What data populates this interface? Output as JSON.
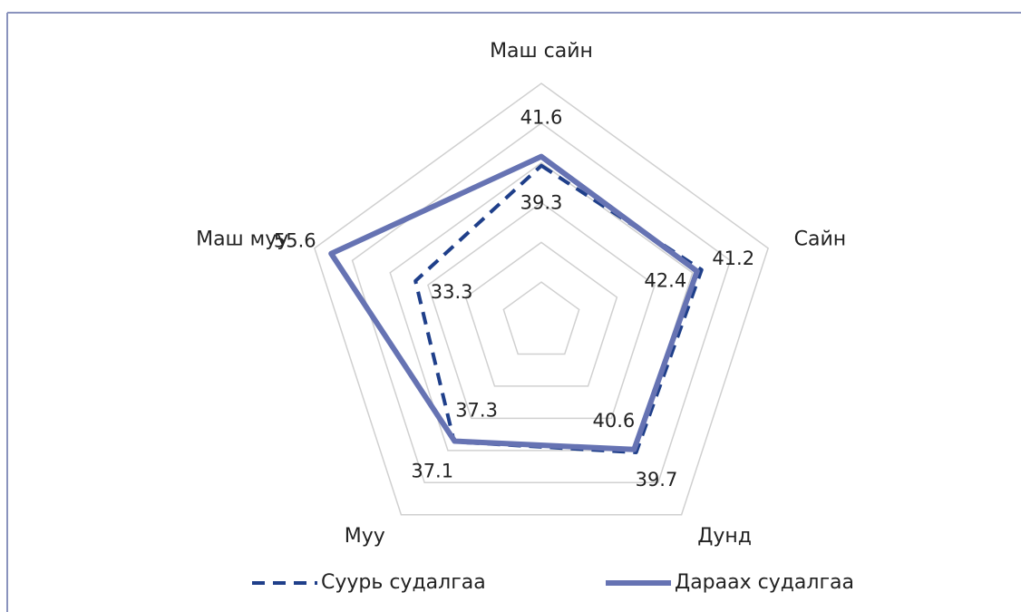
{
  "chart_data": {
    "type": "radar",
    "categories": [
      "Маш сайн",
      "Сайн",
      "Дунд",
      "Муу",
      "Маш муу"
    ],
    "series": [
      {
        "name": "Суурь судалгаа",
        "color": "#1f3f8a",
        "dashed": true,
        "values": [
          39.3,
          42.4,
          40.6,
          37.3,
          33.3
        ]
      },
      {
        "name": "Дараах судалгаа",
        "color": "#6673b3",
        "dashed": false,
        "values": [
          41.6,
          41.2,
          39.7,
          37.1,
          55.6
        ]
      }
    ],
    "rlim": [
      0,
      60
    ],
    "rticks": [
      0,
      10,
      20,
      30,
      40,
      50,
      60
    ],
    "grid": true,
    "legend": "bottom"
  }
}
